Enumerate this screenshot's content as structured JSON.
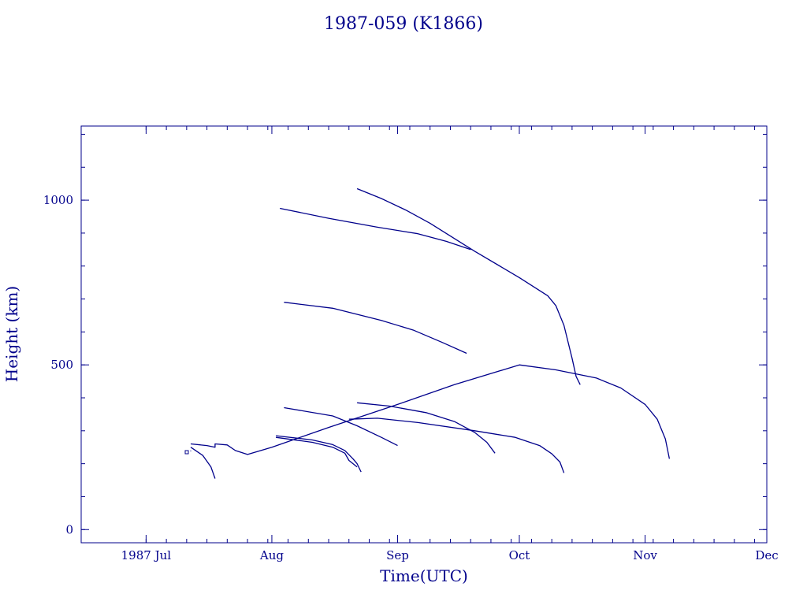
{
  "chart_data": {
    "type": "line",
    "title": "1987-059 (K1866)",
    "xlabel": "Time(UTC)",
    "ylabel": "Height (km)",
    "color": "#00008b",
    "xlim": [
      "1987-06-15",
      "1987-12-01"
    ],
    "ylim": [
      -40,
      1225
    ],
    "grid": false,
    "legend": "none",
    "x_ticks": [
      {
        "date": "1987-07-01",
        "label": "1987 Jul"
      },
      {
        "date": "1987-08-01",
        "label": "Aug"
      },
      {
        "date": "1987-09-01",
        "label": "Sep"
      },
      {
        "date": "1987-10-01",
        "label": "Oct"
      },
      {
        "date": "1987-11-01",
        "label": "Nov"
      },
      {
        "date": "1987-12-01",
        "label": "Dec"
      }
    ],
    "y_ticks": [
      {
        "value": 0,
        "label": "0"
      },
      {
        "value": 500,
        "label": "500"
      },
      {
        "value": 1000,
        "label": "1000"
      }
    ],
    "series": [
      {
        "points": [
          [
            "1987-07-12",
            260
          ],
          [
            "1987-07-16",
            255
          ],
          [
            "1987-07-18",
            250
          ],
          [
            "1987-07-18",
            260
          ],
          [
            "1987-07-21",
            257
          ],
          [
            "1987-07-23",
            240
          ],
          [
            "1987-07-26",
            228
          ],
          [
            "1987-08-01",
            250
          ],
          [
            "1987-08-15",
            310
          ],
          [
            "1987-09-01",
            380
          ],
          [
            "1987-09-15",
            440
          ],
          [
            "1987-10-01",
            500
          ],
          [
            "1987-10-10",
            485
          ],
          [
            "1987-10-20",
            460
          ],
          [
            "1987-10-26",
            430
          ],
          [
            "1987-11-01",
            380
          ],
          [
            "1987-11-04",
            335
          ],
          [
            "1987-11-06",
            275
          ],
          [
            "1987-11-07",
            215
          ]
        ]
      },
      {
        "points": [
          [
            "1987-07-12",
            250
          ],
          [
            "1987-07-15",
            225
          ],
          [
            "1987-07-17",
            190
          ],
          [
            "1987-07-18",
            155
          ]
        ]
      },
      {
        "points": [
          [
            "1987-07-12",
            240
          ],
          [
            "1987-07-12",
            238
          ]
        ]
      },
      {
        "points": [
          [
            "1987-08-22",
            1035
          ],
          [
            "1987-08-28",
            1005
          ],
          [
            "1987-09-03",
            970
          ],
          [
            "1987-09-09",
            930
          ],
          [
            "1987-09-20",
            845
          ],
          [
            "1987-10-01",
            765
          ],
          [
            "1987-10-08",
            710
          ],
          [
            "1987-10-10",
            680
          ],
          [
            "1987-10-12",
            620
          ],
          [
            "1987-10-14",
            520
          ],
          [
            "1987-10-15",
            465
          ],
          [
            "1987-10-16",
            440
          ]
        ]
      },
      {
        "points": [
          [
            "1987-08-03",
            975
          ],
          [
            "1987-08-15",
            945
          ],
          [
            "1987-08-27",
            918
          ],
          [
            "1987-09-06",
            898
          ],
          [
            "1987-09-13",
            875
          ],
          [
            "1987-09-19",
            850
          ]
        ]
      },
      {
        "points": [
          [
            "1987-08-04",
            690
          ],
          [
            "1987-08-16",
            672
          ],
          [
            "1987-08-28",
            635
          ],
          [
            "1987-09-05",
            605
          ],
          [
            "1987-09-12",
            568
          ],
          [
            "1987-09-18",
            535
          ]
        ]
      },
      {
        "points": [
          [
            "1987-08-04",
            370
          ],
          [
            "1987-08-16",
            345
          ],
          [
            "1987-08-22",
            315
          ],
          [
            "1987-08-28",
            280
          ],
          [
            "1987-09-01",
            255
          ]
        ]
      },
      {
        "points": [
          [
            "1987-08-02",
            285
          ],
          [
            "1987-08-11",
            272
          ],
          [
            "1987-08-16",
            258
          ],
          [
            "1987-08-19",
            240
          ],
          [
            "1987-08-21",
            215
          ],
          [
            "1987-08-22",
            200
          ],
          [
            "1987-08-23",
            175
          ]
        ]
      },
      {
        "points": [
          [
            "1987-08-02",
            280
          ],
          [
            "1987-08-11",
            265
          ],
          [
            "1987-08-16",
            250
          ],
          [
            "1987-08-19",
            232
          ],
          [
            "1987-08-20",
            210
          ],
          [
            "1987-08-22",
            190
          ]
        ]
      },
      {
        "points": [
          [
            "1987-08-22",
            385
          ],
          [
            "1987-08-30",
            375
          ],
          [
            "1987-09-08",
            355
          ],
          [
            "1987-09-15",
            328
          ],
          [
            "1987-09-20",
            295
          ],
          [
            "1987-09-23",
            265
          ],
          [
            "1987-09-25",
            232
          ]
        ]
      },
      {
        "points": [
          [
            "1987-08-20",
            335
          ],
          [
            "1987-08-27",
            338
          ],
          [
            "1987-09-06",
            325
          ],
          [
            "1987-09-20",
            300
          ],
          [
            "1987-09-30",
            280
          ],
          [
            "1987-10-06",
            255
          ],
          [
            "1987-10-09",
            230
          ],
          [
            "1987-10-11",
            205
          ],
          [
            "1987-10-12",
            172
          ]
        ]
      }
    ]
  }
}
